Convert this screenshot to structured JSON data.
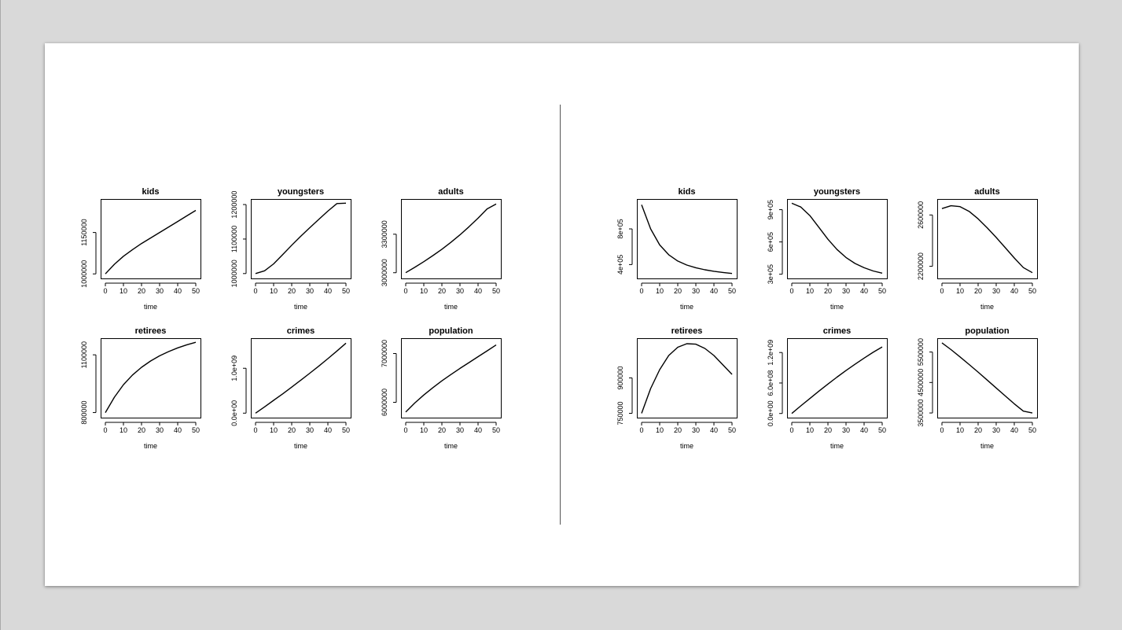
{
  "chart_data": [
    {
      "type": "line",
      "group": "left",
      "title": "kids",
      "xlabel": "time",
      "ylabel": "",
      "x_ticks": [
        0,
        10,
        20,
        30,
        40,
        50
      ],
      "y_ticks": [
        "1000000",
        "1150000"
      ],
      "y_tick_values": [
        1000000,
        1150000
      ],
      "xlim": [
        0,
        50
      ],
      "ylim": [
        995000,
        1260000
      ],
      "series": [
        {
          "x": [
            0,
            5,
            10,
            15,
            20,
            25,
            30,
            35,
            40,
            45,
            50
          ],
          "y": [
            1000000,
            1035000,
            1064000,
            1088000,
            1110000,
            1130000,
            1150000,
            1170000,
            1190000,
            1210000,
            1230000
          ]
        }
      ]
    },
    {
      "type": "line",
      "group": "left",
      "title": "youngsters",
      "xlabel": "time",
      "ylabel": "",
      "x_ticks": [
        0,
        10,
        20,
        30,
        40,
        50
      ],
      "y_ticks": [
        "1000000",
        "1100000",
        "1200000"
      ],
      "y_tick_values": [
        1000000,
        1100000,
        1200000
      ],
      "xlim": [
        0,
        50
      ],
      "ylim": [
        995000,
        1207000
      ],
      "series": [
        {
          "x": [
            0,
            5,
            10,
            15,
            20,
            25,
            30,
            35,
            40,
            45,
            50
          ],
          "y": [
            1000000,
            1008000,
            1028000,
            1055000,
            1082000,
            1108000,
            1133000,
            1157000,
            1181000,
            1203000,
            1204000
          ]
        }
      ]
    },
    {
      "type": "line",
      "group": "left",
      "title": "adults",
      "xlabel": "time",
      "ylabel": "",
      "x_ticks": [
        0,
        10,
        20,
        30,
        40,
        50
      ],
      "y_ticks": [
        "3000000",
        "3300000"
      ],
      "y_tick_values": [
        3000000,
        3300000
      ],
      "xlim": [
        0,
        50
      ],
      "ylim": [
        2980000,
        3550000
      ],
      "series": [
        {
          "x": [
            0,
            5,
            10,
            15,
            20,
            25,
            30,
            35,
            40,
            45,
            50
          ],
          "y": [
            3000000,
            3042000,
            3086000,
            3133000,
            3183000,
            3237000,
            3295000,
            3358000,
            3425000,
            3497000,
            3535000
          ]
        }
      ]
    },
    {
      "type": "line",
      "group": "left",
      "title": "retirees",
      "xlabel": "time",
      "ylabel": "",
      "x_ticks": [
        0,
        10,
        20,
        30,
        40,
        50
      ],
      "y_ticks": [
        "800000",
        "1100000"
      ],
      "y_tick_values": [
        800000,
        1100000
      ],
      "xlim": [
        0,
        50
      ],
      "ylim": [
        790000,
        1170000
      ],
      "series": [
        {
          "x": [
            0,
            5,
            10,
            15,
            20,
            25,
            30,
            35,
            40,
            45,
            50
          ],
          "y": [
            800000,
            880000,
            945000,
            995000,
            1035000,
            1068000,
            1095000,
            1117000,
            1136000,
            1152000,
            1165000
          ]
        }
      ]
    },
    {
      "type": "line",
      "group": "left",
      "title": "crimes",
      "xlabel": "time",
      "ylabel": "",
      "x_ticks": [
        0,
        10,
        20,
        30,
        40,
        50
      ],
      "y_ticks": [
        "0.0e+00",
        "1.0e+09"
      ],
      "y_tick_values": [
        0,
        1000000000
      ],
      "xlim": [
        0,
        50
      ],
      "ylim": [
        -30000000,
        1600000000
      ],
      "series": [
        {
          "x": [
            0,
            5,
            10,
            15,
            20,
            25,
            30,
            35,
            40,
            45,
            50
          ],
          "y": [
            0,
            140000000,
            285000000,
            430000000,
            580000000,
            735000000,
            890000000,
            1050000000,
            1215000000,
            1385000000,
            1560000000
          ]
        }
      ]
    },
    {
      "type": "line",
      "group": "left",
      "title": "population",
      "xlabel": "time",
      "ylabel": "",
      "x_ticks": [
        0,
        10,
        20,
        30,
        40,
        50
      ],
      "y_ticks": [
        "6000000",
        "7000000"
      ],
      "y_tick_values": [
        6000000,
        7000000
      ],
      "xlim": [
        0,
        50
      ],
      "ylim": [
        5750000,
        7250000
      ],
      "series": [
        {
          "x": [
            0,
            5,
            10,
            15,
            20,
            25,
            30,
            35,
            40,
            45,
            50
          ],
          "y": [
            5800000,
            5985000,
            6150000,
            6300000,
            6440000,
            6570000,
            6695000,
            6815000,
            6935000,
            7055000,
            7175000
          ]
        }
      ]
    },
    {
      "type": "line",
      "group": "right",
      "title": "kids",
      "xlabel": "time",
      "ylabel": "",
      "x_ticks": [
        0,
        10,
        20,
        30,
        40,
        50
      ],
      "y_ticks": [
        "4e+05",
        "8e+05"
      ],
      "y_tick_values": [
        400000,
        800000
      ],
      "xlim": [
        0,
        50
      ],
      "ylim": [
        280000,
        1100000
      ],
      "series": [
        {
          "x": [
            0,
            5,
            10,
            15,
            20,
            25,
            30,
            35,
            40,
            45,
            50
          ],
          "y": [
            1070000,
            800000,
            620000,
            510000,
            440000,
            395000,
            365000,
            342000,
            325000,
            312000,
            300000
          ]
        }
      ]
    },
    {
      "type": "line",
      "group": "right",
      "title": "youngsters",
      "xlabel": "time",
      "ylabel": "",
      "x_ticks": [
        0,
        10,
        20,
        30,
        40,
        50
      ],
      "y_ticks": [
        "3e+05",
        "6e+05",
        "9e+05"
      ],
      "y_tick_values": [
        300000,
        600000,
        900000
      ],
      "xlim": [
        0,
        50
      ],
      "ylim": [
        290000,
        970000
      ],
      "series": [
        {
          "x": [
            0,
            5,
            10,
            15,
            20,
            25,
            30,
            35,
            40,
            45,
            50
          ],
          "y": [
            960000,
            925000,
            845000,
            735000,
            625000,
            530000,
            455000,
            400000,
            360000,
            330000,
            310000
          ]
        }
      ]
    },
    {
      "type": "line",
      "group": "right",
      "title": "adults",
      "xlabel": "time",
      "ylabel": "",
      "x_ticks": [
        0,
        10,
        20,
        30,
        40,
        50
      ],
      "y_ticks": [
        "2200000",
        "2600000"
      ],
      "y_tick_values": [
        2200000,
        2600000
      ],
      "xlim": [
        0,
        50
      ],
      "ylim": [
        2130000,
        2700000
      ],
      "series": [
        {
          "x": [
            0,
            5,
            10,
            15,
            20,
            25,
            30,
            35,
            40,
            45,
            50
          ],
          "y": [
            2650000,
            2672000,
            2665000,
            2628000,
            2570000,
            2500000,
            2425000,
            2345000,
            2265000,
            2190000,
            2150000
          ]
        }
      ]
    },
    {
      "type": "line",
      "group": "right",
      "title": "retirees",
      "xlabel": "time",
      "ylabel": "",
      "x_ticks": [
        0,
        10,
        20,
        30,
        40,
        50
      ],
      "y_ticks": [
        "750000",
        "900000"
      ],
      "y_tick_values": [
        750000,
        900000
      ],
      "xlim": [
        0,
        50
      ],
      "ylim": [
        745000,
        1055000
      ],
      "series": [
        {
          "x": [
            0,
            5,
            10,
            15,
            20,
            25,
            30,
            35,
            40,
            45,
            50
          ],
          "y": [
            750000,
            855000,
            935000,
            995000,
            1030000,
            1045000,
            1043000,
            1025000,
            995000,
            955000,
            915000
          ]
        }
      ]
    },
    {
      "type": "line",
      "group": "right",
      "title": "crimes",
      "xlabel": "time",
      "ylabel": "",
      "x_ticks": [
        0,
        10,
        20,
        30,
        40,
        50
      ],
      "y_ticks": [
        "0.0e+00",
        "6.0e+08",
        "1.2e+09"
      ],
      "y_tick_values": [
        0,
        600000000,
        1200000000
      ],
      "xlim": [
        0,
        50
      ],
      "ylim": [
        -20000000,
        1420000000
      ],
      "series": [
        {
          "x": [
            0,
            5,
            10,
            15,
            20,
            25,
            30,
            35,
            40,
            45,
            50
          ],
          "y": [
            0,
            150000000,
            295000000,
            440000000,
            580000000,
            715000000,
            845000000,
            970000000,
            1090000000,
            1205000000,
            1310000000
          ]
        }
      ]
    },
    {
      "type": "line",
      "group": "right",
      "title": "population",
      "xlabel": "time",
      "ylabel": "",
      "x_ticks": [
        0,
        10,
        20,
        30,
        40,
        50
      ],
      "y_ticks": [
        "3500000",
        "4500000",
        "5500000"
      ],
      "y_tick_values": [
        3500000,
        4500000,
        5500000
      ],
      "xlim": [
        0,
        50
      ],
      "ylim": [
        3450000,
        5850000
      ],
      "series": [
        {
          "x": [
            0,
            5,
            10,
            15,
            20,
            25,
            30,
            35,
            40,
            45,
            50
          ],
          "y": [
            5800000,
            5580000,
            5340000,
            5090000,
            4840000,
            4580000,
            4320000,
            4060000,
            3800000,
            3560000,
            3500000
          ]
        }
      ]
    }
  ]
}
